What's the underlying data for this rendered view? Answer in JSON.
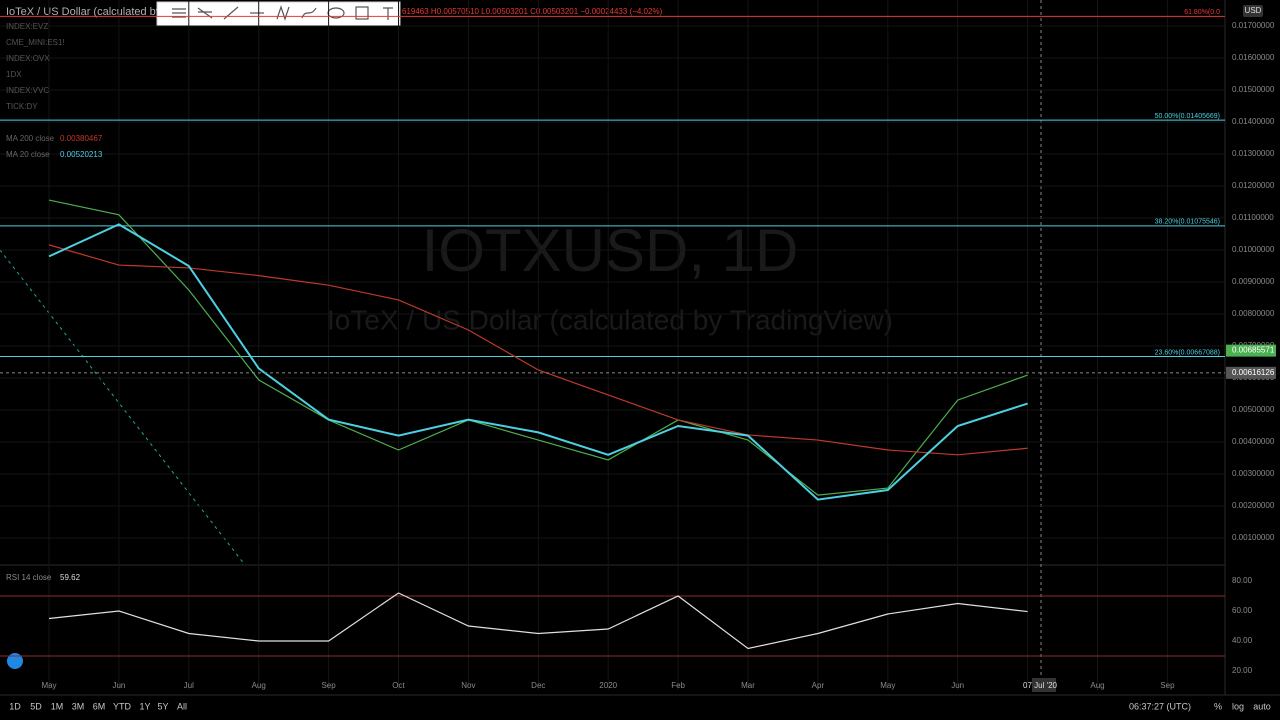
{
  "header": {
    "symbol": "IoTeX / US Dollar (calculated by",
    "ohlc": "619463 H0.00570510 L0.00503201 C0.00503201 −0.00024433 (−4.02%)",
    "currency": "USD"
  },
  "watermark": {
    "title": "IOTXUSD, 1D",
    "subtitle": "IoTeX / US Dollar (calculated by TradingView)"
  },
  "overlays": [
    "INDEX:EVZ",
    "CME_MINI:ES1!",
    "INDEX:OVX",
    "1DX",
    "INDEX:VVC",
    "TICK:DY"
  ],
  "cursor_date": "07 Jul '20",
  "toolbar": {
    "ranges": [
      "1D",
      "5D",
      "1M",
      "3M",
      "6M",
      "YTD",
      "1Y",
      "5Y",
      "All"
    ],
    "clock": "06:37:27 (UTC)",
    "options": [
      "%",
      "log",
      "auto"
    ]
  },
  "chart_data": [
    {
      "type": "line",
      "categories": [
        "May",
        "Jun",
        "Jul",
        "Aug",
        "Sep",
        "Oct",
        "Nov",
        "Dec",
        "2020",
        "Feb",
        "Mar",
        "Apr",
        "May",
        "Jun",
        null,
        "Aug",
        "Sep"
      ],
      "series": [
        {
          "color": "#4caf50",
          "values": [
            0.01156,
            0.0111,
            0.00875,
            0.00594,
            0.00469,
            0.00375,
            0.00469,
            0.00406,
            0.00344,
            0.00469,
            0.00406,
            0.00234,
            0.00256,
            0.00531,
            0.00609,
            null,
            null
          ]
        },
        {
          "name": "MA 200 close",
          "color": "#c0392b",
          "values": [
            0.01016,
            0.00953,
            0.00944,
            0.0092,
            0.0089,
            0.00844,
            0.0075,
            0.00625,
            0.00547,
            0.00469,
            0.00422,
            0.00406,
            0.00375,
            0.0036,
            0.00380467,
            null,
            null
          ]
        },
        {
          "name": "MA 20 close",
          "color": "#4dd0e1",
          "values": [
            0.0098,
            0.0108,
            0.0095,
            0.0063,
            0.0047,
            0.0042,
            0.0047,
            0.0043,
            0.0036,
            0.0045,
            0.0042,
            0.0022,
            0.0025,
            0.0045,
            0.00520213,
            null,
            null
          ]
        }
      ],
      "ylim": [
        0.00015625,
        0.0178125
      ],
      "yticks": [
        {
          "value": 0.017,
          "label": "0.01700000"
        },
        {
          "value": 0.016,
          "label": "0.01600000"
        },
        {
          "value": 0.015,
          "label": "0.01500000"
        },
        {
          "value": 0.014,
          "label": "0.01400000"
        },
        {
          "value": 0.013,
          "label": "0.01300000"
        },
        {
          "value": 0.012,
          "label": "0.01200000"
        },
        {
          "value": 0.011,
          "label": "0.01100000"
        },
        {
          "value": 0.01,
          "label": "0.01000000"
        },
        {
          "value": 0.009,
          "label": "0.00900000"
        },
        {
          "value": 0.008,
          "label": "0.00800000"
        },
        {
          "value": 0.007,
          "label": "0.00700000"
        },
        {
          "value": 0.006,
          "label": "0.00600000"
        },
        {
          "value": 0.005,
          "label": "0.00500000"
        },
        {
          "value": 0.004,
          "label": "0.00400000"
        },
        {
          "value": 0.003,
          "label": "0.00300000"
        },
        {
          "value": 0.002,
          "label": "0.00200000"
        },
        {
          "value": 0.001,
          "label": "0.00100000"
        }
      ],
      "grid": true,
      "levels": [
        {
          "value": 0.0173,
          "label": "61.80%(0.0",
          "color": "#e53935"
        },
        {
          "value": 0.01405669,
          "label": "50.00%(0.01405669)",
          "color": "#4dd0e1"
        },
        {
          "value": 0.01075546,
          "label": "38.20%(0.01075546)",
          "color": "#4dd0e1"
        },
        {
          "value": 0.00667088,
          "label": "23.60%(0.00667088)",
          "color": "#4dd0e1"
        }
      ],
      "price_tags": [
        {
          "value": 0.00685571,
          "color": "#4caf50"
        },
        {
          "value": 0.00616126,
          "color": "#555555"
        }
      ]
    },
    {
      "type": "line",
      "title": "RSI 14 close",
      "series": [
        {
          "color": "#e0e0e0",
          "values": [
            55,
            60,
            45,
            40,
            40,
            72,
            50,
            45,
            48,
            70,
            35,
            45,
            58,
            65,
            59.62,
            null,
            null
          ]
        }
      ],
      "ylim": [
        7.33,
        90.67
      ],
      "yticks": [
        {
          "value": 80,
          "label": "80.00"
        },
        {
          "value": 60,
          "label": "60.00"
        },
        {
          "value": 40,
          "label": "40.00"
        },
        {
          "value": 20,
          "label": "20.00"
        }
      ],
      "bands": [
        70,
        30
      ],
      "band_color": "#8b2a2a"
    }
  ]
}
